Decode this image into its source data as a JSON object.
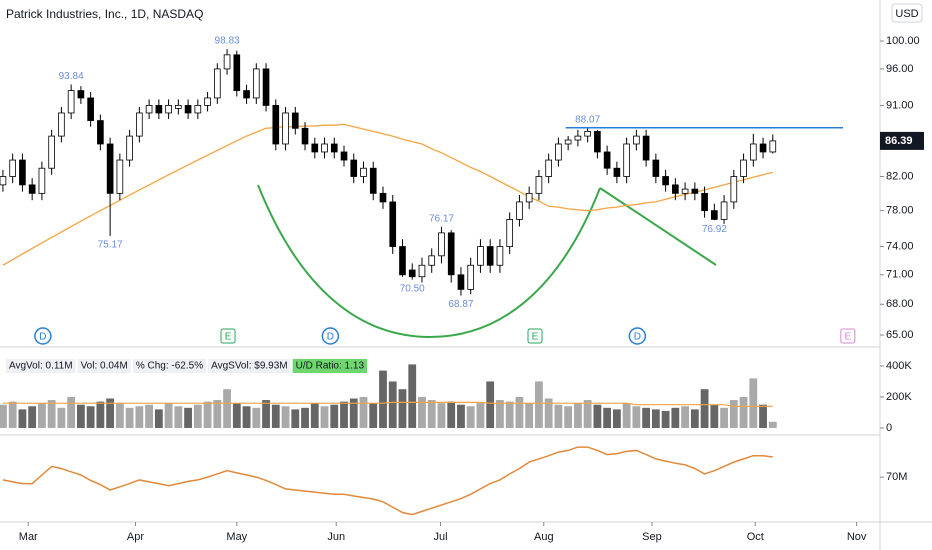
{
  "chart_data": {
    "type": "candlestick",
    "title": "Patrick Industries, Inc., 1D, NASDAQ",
    "currency": "USD",
    "log_scale": true,
    "xlim": [
      -0.3,
      90
    ],
    "xticks": [
      {
        "value": 2.6,
        "label": "Mar"
      },
      {
        "value": 13.6,
        "label": "Apr"
      },
      {
        "value": 24.0,
        "label": "May"
      },
      {
        "value": 34.2,
        "label": "Jun"
      },
      {
        "value": 44.9,
        "label": "Jul"
      },
      {
        "value": 55.5,
        "label": "Aug"
      },
      {
        "value": 66.6,
        "label": "Sep"
      },
      {
        "value": 77.2,
        "label": "Oct"
      },
      {
        "value": 87.6,
        "label": "Nov"
      }
    ],
    "ylim": [
      64.06,
      106.2
    ],
    "yticks": [
      {
        "value": 100,
        "label": "100.00"
      },
      {
        "value": 96,
        "label": "96.00"
      },
      {
        "value": 91,
        "label": "91.00"
      },
      {
        "value": 82,
        "label": "82.00"
      },
      {
        "value": 78,
        "label": "78.00"
      },
      {
        "value": 74,
        "label": "74.00"
      },
      {
        "value": 71,
        "label": "71.00"
      },
      {
        "value": 68,
        "label": "68.00"
      },
      {
        "value": 65,
        "label": "65.00"
      }
    ],
    "last_price": 86.39,
    "up_color": "#ffffff",
    "down_color": "#000000",
    "candles": [
      [
        81,
        82.8,
        80.2,
        82
      ],
      [
        82,
        84.8,
        81.2,
        84
      ],
      [
        84,
        84.8,
        80.2,
        81
      ],
      [
        81,
        81.8,
        79.2,
        80
      ],
      [
        80,
        83.8,
        79.2,
        83
      ],
      [
        83,
        87.8,
        82.2,
        87
      ],
      [
        87,
        90.8,
        86.2,
        90
      ],
      [
        90,
        93.84,
        89.2,
        93
      ],
      [
        93,
        93.6,
        91.2,
        92
      ],
      [
        92,
        92.8,
        88.2,
        89
      ],
      [
        89,
        89.8,
        85.2,
        86
      ],
      [
        86,
        86.8,
        75.17,
        80
      ],
      [
        80,
        84.8,
        79.2,
        84
      ],
      [
        84,
        87.8,
        83.2,
        87
      ],
      [
        87,
        90.8,
        86.2,
        90
      ],
      [
        90,
        91.8,
        89.2,
        91
      ],
      [
        91,
        91.8,
        89.2,
        90
      ],
      [
        90,
        91.8,
        89.2,
        91
      ],
      [
        90.6,
        91.8,
        89.8,
        91
      ],
      [
        91,
        91.8,
        89.2,
        90
      ],
      [
        90,
        91.8,
        89.2,
        91
      ],
      [
        91,
        92.8,
        90.2,
        92
      ],
      [
        92,
        96.8,
        91.2,
        96
      ],
      [
        96,
        98.83,
        95.2,
        98
      ],
      [
        98,
        98.6,
        92.2,
        93
      ],
      [
        93,
        93.8,
        91.2,
        92
      ],
      [
        92,
        96.8,
        91.2,
        96
      ],
      [
        96,
        96.8,
        90.2,
        91
      ],
      [
        91,
        91.8,
        85.2,
        86
      ],
      [
        86,
        90.8,
        85.2,
        90
      ],
      [
        90,
        90.8,
        87.2,
        88
      ],
      [
        88,
        88.8,
        85.2,
        86
      ],
      [
        86,
        86.8,
        84.2,
        85
      ],
      [
        85,
        86.8,
        84.2,
        86
      ],
      [
        86,
        86.8,
        84.2,
        85
      ],
      [
        85,
        85.8,
        83.2,
        84
      ],
      [
        84,
        84.8,
        81.2,
        82
      ],
      [
        82,
        83.8,
        81.2,
        83
      ],
      [
        83,
        83.8,
        79.2,
        80
      ],
      [
        80,
        80.8,
        78.2,
        79
      ],
      [
        79,
        79.8,
        73.2,
        74
      ],
      [
        74,
        74.8,
        70.8,
        71
      ],
      [
        71.5,
        72.2,
        70.5,
        70.8
      ],
      [
        70.8,
        72.8,
        70.2,
        72
      ],
      [
        72,
        73.8,
        71.2,
        73
      ],
      [
        73,
        76.17,
        72.2,
        75.5
      ],
      [
        75.5,
        75.8,
        70.2,
        71
      ],
      [
        71,
        71.8,
        68.87,
        69.5
      ],
      [
        69.5,
        72.8,
        69,
        72
      ],
      [
        72,
        74.8,
        71.2,
        74
      ],
      [
        74,
        74.8,
        71.2,
        72
      ],
      [
        72,
        74.8,
        71.2,
        74
      ],
      [
        74,
        77.8,
        73.2,
        77
      ],
      [
        77,
        79.8,
        76.2,
        79
      ],
      [
        79,
        80.8,
        78.2,
        80
      ],
      [
        80,
        82.8,
        79.2,
        82
      ],
      [
        82,
        84.8,
        81.2,
        84
      ],
      [
        84,
        86.8,
        83.2,
        86
      ],
      [
        86,
        87,
        85.2,
        86.5
      ],
      [
        86.5,
        87.8,
        85.7,
        87
      ],
      [
        87,
        88.07,
        86.2,
        87.6
      ],
      [
        87.6,
        87.8,
        84.2,
        85
      ],
      [
        85,
        85.8,
        82.2,
        83
      ],
      [
        83,
        83.8,
        81.2,
        82
      ],
      [
        82,
        86.8,
        81.2,
        86
      ],
      [
        86,
        87.8,
        85.2,
        87
      ],
      [
        87,
        87.8,
        83.2,
        84
      ],
      [
        84,
        84.8,
        81.2,
        82
      ],
      [
        82,
        82.8,
        80.2,
        81
      ],
      [
        81,
        81.8,
        79.2,
        80
      ],
      [
        80,
        81.3,
        79.2,
        80.5
      ],
      [
        80.5,
        81.3,
        79.2,
        80
      ],
      [
        80,
        80.8,
        77.2,
        78
      ],
      [
        78,
        78.8,
        76.92,
        77
      ],
      [
        77,
        79.8,
        76.5,
        79
      ],
      [
        79,
        82.8,
        78.2,
        82
      ],
      [
        82,
        84.8,
        81.2,
        84
      ],
      [
        84,
        87.3,
        83.2,
        86
      ],
      [
        86,
        86.8,
        84.2,
        85
      ],
      [
        85,
        87.2,
        84.8,
        86.39
      ]
    ],
    "ma_color": "#f5a442",
    "ma": [
      72,
      72.6,
      73.2,
      73.8,
      74.4,
      75,
      75.6,
      76.2,
      76.8,
      77.4,
      78,
      78.6,
      79.2,
      79.8,
      80.4,
      81,
      81.6,
      82.2,
      82.8,
      83.4,
      84,
      84.6,
      85.2,
      85.8,
      86.4,
      87,
      87.5,
      88,
      88.1,
      88.2,
      88.2,
      88.3,
      88.3,
      88.4,
      88.4,
      88.5,
      88.2,
      87.9,
      87.6,
      87.3,
      87,
      86.6,
      86.3,
      86,
      85.4,
      84.9,
      84.3,
      83.7,
      83.1,
      82.6,
      82,
      81.4,
      80.8,
      80.2,
      79.6,
      79.1,
      78.5,
      78.4,
      78.2,
      78.1,
      78,
      78.1,
      78.3,
      78.4,
      78.6,
      78.7,
      78.9,
      79,
      79.3,
      79.6,
      79.9,
      80.1,
      80.4,
      80.7,
      81,
      81.3,
      81.6,
      81.9,
      82.2,
      82.5
    ],
    "annotations": [
      {
        "index": 7,
        "value": 93.84
      },
      {
        "index": 23,
        "value": 98.83
      },
      {
        "index": 11,
        "value": 75.17
      },
      {
        "index": 45,
        "value": 76.17
      },
      {
        "index": 42,
        "value": 70.5,
        "label": "70.50"
      },
      {
        "index": 47,
        "value": 68.87
      },
      {
        "index": 60,
        "value": 88.07
      },
      {
        "index": 73,
        "value": 76.92
      }
    ],
    "resistance_color": "#2a7fd4",
    "events": [
      {
        "label": "D",
        "index": 4.1,
        "color": "#2a7fd4"
      },
      {
        "label": "E",
        "index": 23.1,
        "color": "#26a65b"
      },
      {
        "label": "D",
        "index": 33.6,
        "color": "#2a7fd4"
      },
      {
        "label": "E",
        "index": 54.6,
        "color": "#26a65b"
      },
      {
        "label": "D",
        "index": 65.1,
        "color": "#2a7fd4"
      },
      {
        "label": "E",
        "index": 86.7,
        "color": "#d488d4"
      }
    ],
    "volume_legend": [
      "AvgVol: 0.11M",
      "Vol: 0.04M",
      "% Chg: -62.5%",
      "AvgSVol: $9.93M",
      "U/D Ratio: 1.13"
    ],
    "volume_ylim": [
      -26,
      490
    ],
    "volume_yticks": [
      {
        "value": 400,
        "label": "400K"
      },
      {
        "value": 200,
        "label": "200K"
      },
      0
    ],
    "volume_up_color": "#a9a9a9",
    "volume_down_color": "#666666",
    "volume": [
      150,
      170,
      120,
      140,
      160,
      180,
      130,
      200,
      150,
      140,
      170,
      190,
      160,
      130,
      140,
      150,
      120,
      160,
      140,
      130,
      150,
      170,
      180,
      250,
      160,
      140,
      130,
      180,
      150,
      140,
      120,
      130,
      160,
      140,
      150,
      170,
      190,
      200,
      160,
      370,
      300,
      250,
      410,
      200,
      180,
      160,
      170,
      150,
      140,
      160,
      300,
      180,
      170,
      200,
      160,
      300,
      190,
      150,
      140,
      160,
      180,
      150,
      130,
      120,
      160,
      140,
      130,
      120,
      110,
      130,
      140,
      120,
      250,
      150,
      130,
      180,
      200,
      320,
      150,
      40
    ],
    "volume_ma": [
      160,
      160,
      160,
      160,
      160,
      160,
      160,
      160,
      160,
      160,
      160,
      160,
      160,
      160,
      160,
      160,
      160,
      160,
      160,
      160,
      160,
      160,
      160,
      160,
      160,
      160,
      160,
      160,
      160,
      160,
      160,
      160,
      160,
      160,
      160,
      160,
      160,
      160,
      160,
      160,
      165,
      165,
      165,
      165,
      165,
      165,
      165,
      165,
      165,
      165,
      160,
      160,
      160,
      160,
      160,
      160,
      160,
      160,
      160,
      160,
      160,
      160,
      160,
      160,
      160,
      150,
      150,
      150,
      150,
      150,
      150,
      150,
      150,
      150,
      150,
      140,
      140,
      140,
      140,
      140
    ],
    "rs_color": "#e0893a",
    "rs_ylim": [
      50,
      85
    ],
    "rs_yticks": [
      {
        "value": 70,
        "label": "70M"
      }
    ],
    "rs": [
      68.7,
      67.8,
      67,
      67,
      71,
      75,
      74,
      72.5,
      71,
      68.5,
      66.5,
      64,
      65.5,
      67,
      68.7,
      67.8,
      67,
      66,
      67,
      68,
      68.7,
      70,
      71.5,
      73,
      72,
      71,
      70,
      68.5,
      66.5,
      64.5,
      64,
      63.5,
      63,
      62.5,
      62,
      62,
      61.2,
      60.5,
      59.8,
      58.5,
      56,
      53.5,
      52.5,
      54,
      55.5,
      57,
      58.5,
      60,
      62,
      64.5,
      67,
      68.7,
      71.5,
      74,
      77,
      78.5,
      80,
      81.7,
      82.5,
      84,
      84,
      82.5,
      80.5,
      81,
      82,
      82.5,
      80.5,
      78.5,
      77.5,
      76.5,
      75.7,
      74,
      71.5,
      73,
      75,
      77,
      78.5,
      80,
      80,
      79.4
    ]
  }
}
